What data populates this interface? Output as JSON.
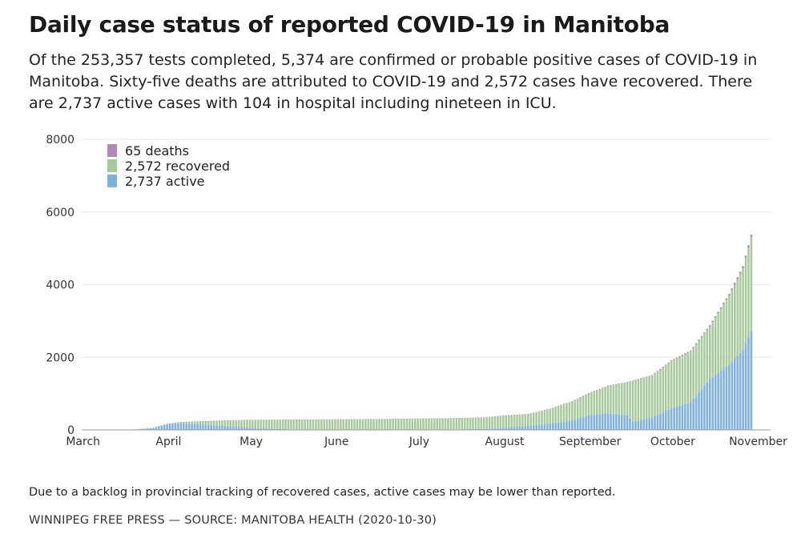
{
  "title": "Daily case status of reported COVID-19 in Manitoba",
  "subtitle": "Of the 253,357 tests completed, 5,374 are confirmed or probable positive cases of COVID-19 in Manitoba. Sixty-five deaths are attributed to COVID-19 and 2,572 cases have recovered. There are 2,737 active cases with 104 in hospital including nineteen in ICU.",
  "note": "Due to a backlog in provincial tracking of recovered cases, active cases may be lower than reported.",
  "source": "WINNIPEG FREE PRESS — SOURCE: MANITOBA HEALTH (2020-10-30)",
  "colors": {
    "deaths": "#b386b5",
    "recovered": "#a8c99b",
    "active": "#7fb0dd",
    "grid": "#e6e6e6",
    "axis": "#999999"
  },
  "chart_data": {
    "type": "bar",
    "stacked": true,
    "x_axis_labels": [
      "March",
      "April",
      "May",
      "June",
      "July",
      "August",
      "September",
      "October",
      "November"
    ],
    "y_ticks": [
      0,
      2000,
      4000,
      6000,
      8000
    ],
    "y_tick_labels": [
      "0",
      "2000",
      "4000",
      "6000",
      "8000"
    ],
    "ylim": [
      0,
      8000
    ],
    "x_range": [
      "2020-03-01",
      "2020-11-06"
    ],
    "grid": true,
    "legend_position": "top-left",
    "legend": [
      {
        "key": "deaths",
        "label": "65 deaths"
      },
      {
        "key": "recovered",
        "label": "2,572 recovered"
      },
      {
        "key": "active",
        "label": "2,737 active"
      }
    ],
    "series_order": [
      "active",
      "recovered",
      "deaths"
    ],
    "keyframes": [
      {
        "date": "2020-03-12",
        "active": 0,
        "recovered": 0,
        "deaths": 0
      },
      {
        "date": "2020-03-20",
        "active": 15,
        "recovered": 0,
        "deaths": 0
      },
      {
        "date": "2020-03-27",
        "active": 55,
        "recovered": 5,
        "deaths": 0
      },
      {
        "date": "2020-04-01",
        "active": 150,
        "recovered": 15,
        "deaths": 1
      },
      {
        "date": "2020-04-06",
        "active": 175,
        "recovered": 40,
        "deaths": 2
      },
      {
        "date": "2020-04-12",
        "active": 160,
        "recovered": 70,
        "deaths": 4
      },
      {
        "date": "2020-04-20",
        "active": 120,
        "recovered": 130,
        "deaths": 6
      },
      {
        "date": "2020-05-01",
        "active": 60,
        "recovered": 210,
        "deaths": 7
      },
      {
        "date": "2020-05-15",
        "active": 15,
        "recovered": 262,
        "deaths": 7
      },
      {
        "date": "2020-06-01",
        "active": 8,
        "recovered": 278,
        "deaths": 7
      },
      {
        "date": "2020-06-20",
        "active": 5,
        "recovered": 290,
        "deaths": 7
      },
      {
        "date": "2020-07-10",
        "active": 12,
        "recovered": 300,
        "deaths": 7
      },
      {
        "date": "2020-07-25",
        "active": 25,
        "recovered": 310,
        "deaths": 8
      },
      {
        "date": "2020-08-01",
        "active": 60,
        "recovered": 330,
        "deaths": 8
      },
      {
        "date": "2020-08-10",
        "active": 110,
        "recovered": 320,
        "deaths": 9
      },
      {
        "date": "2020-08-18",
        "active": 175,
        "recovered": 400,
        "deaths": 10
      },
      {
        "date": "2020-08-26",
        "active": 260,
        "recovered": 520,
        "deaths": 12
      },
      {
        "date": "2020-09-01",
        "active": 400,
        "recovered": 600,
        "deaths": 14
      },
      {
        "date": "2020-09-08",
        "active": 460,
        "recovered": 740,
        "deaths": 16
      },
      {
        "date": "2020-09-15",
        "active": 400,
        "recovered": 900,
        "deaths": 17
      },
      {
        "date": "2020-09-17",
        "active": 230,
        "recovered": 1110,
        "deaths": 18
      },
      {
        "date": "2020-09-24",
        "active": 340,
        "recovered": 1150,
        "deaths": 19
      },
      {
        "date": "2020-10-01",
        "active": 590,
        "recovered": 1300,
        "deaths": 22
      },
      {
        "date": "2020-10-08",
        "active": 760,
        "recovered": 1400,
        "deaths": 27
      },
      {
        "date": "2020-10-15",
        "active": 1400,
        "recovered": 1450,
        "deaths": 35
      },
      {
        "date": "2020-10-22",
        "active": 1800,
        "recovered": 1900,
        "deaths": 45
      },
      {
        "date": "2020-10-27",
        "active": 2200,
        "recovered": 2250,
        "deaths": 58
      },
      {
        "date": "2020-10-30",
        "active": 2737,
        "recovered": 2572,
        "deaths": 65
      }
    ]
  }
}
